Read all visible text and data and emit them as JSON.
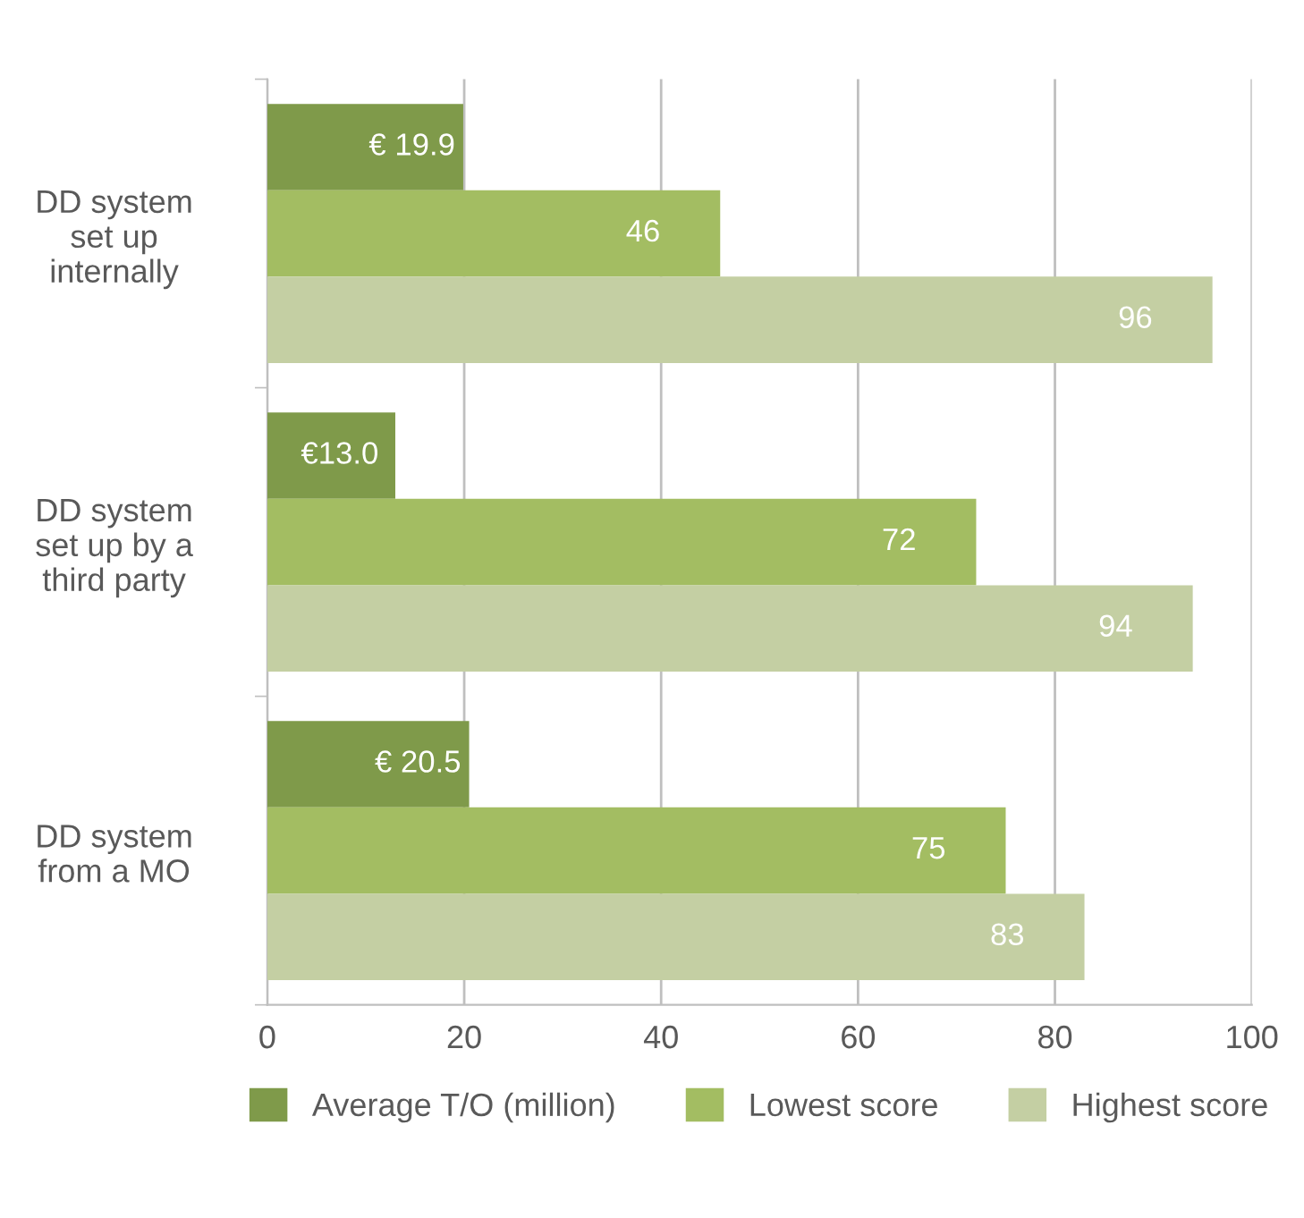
{
  "chart_data": {
    "type": "bar",
    "orientation": "horizontal",
    "categories": [
      "DD system\nset up\ninternally",
      "DD system\nset up by a\nthird party",
      "DD system\nfrom a MO"
    ],
    "series": [
      {
        "name": "Average T/O (million)",
        "color": "#7f9a4a",
        "values": [
          19.9,
          13.0,
          20.5
        ],
        "value_labels": [
          "€ 19.9",
          "€13.0",
          "€ 20.5"
        ]
      },
      {
        "name": "Lowest score",
        "color": "#a3bd62",
        "values": [
          46,
          72,
          75
        ],
        "value_labels": [
          "46",
          "72",
          "75"
        ]
      },
      {
        "name": "Highest score",
        "color": "#c4cfa3",
        "values": [
          96,
          94,
          83
        ],
        "value_labels": [
          "96",
          "94",
          "83"
        ]
      }
    ],
    "xlim": [
      0,
      100
    ],
    "xticks": [
      0,
      20,
      40,
      60,
      80,
      100
    ],
    "grid": "x",
    "legend": "bottom"
  }
}
